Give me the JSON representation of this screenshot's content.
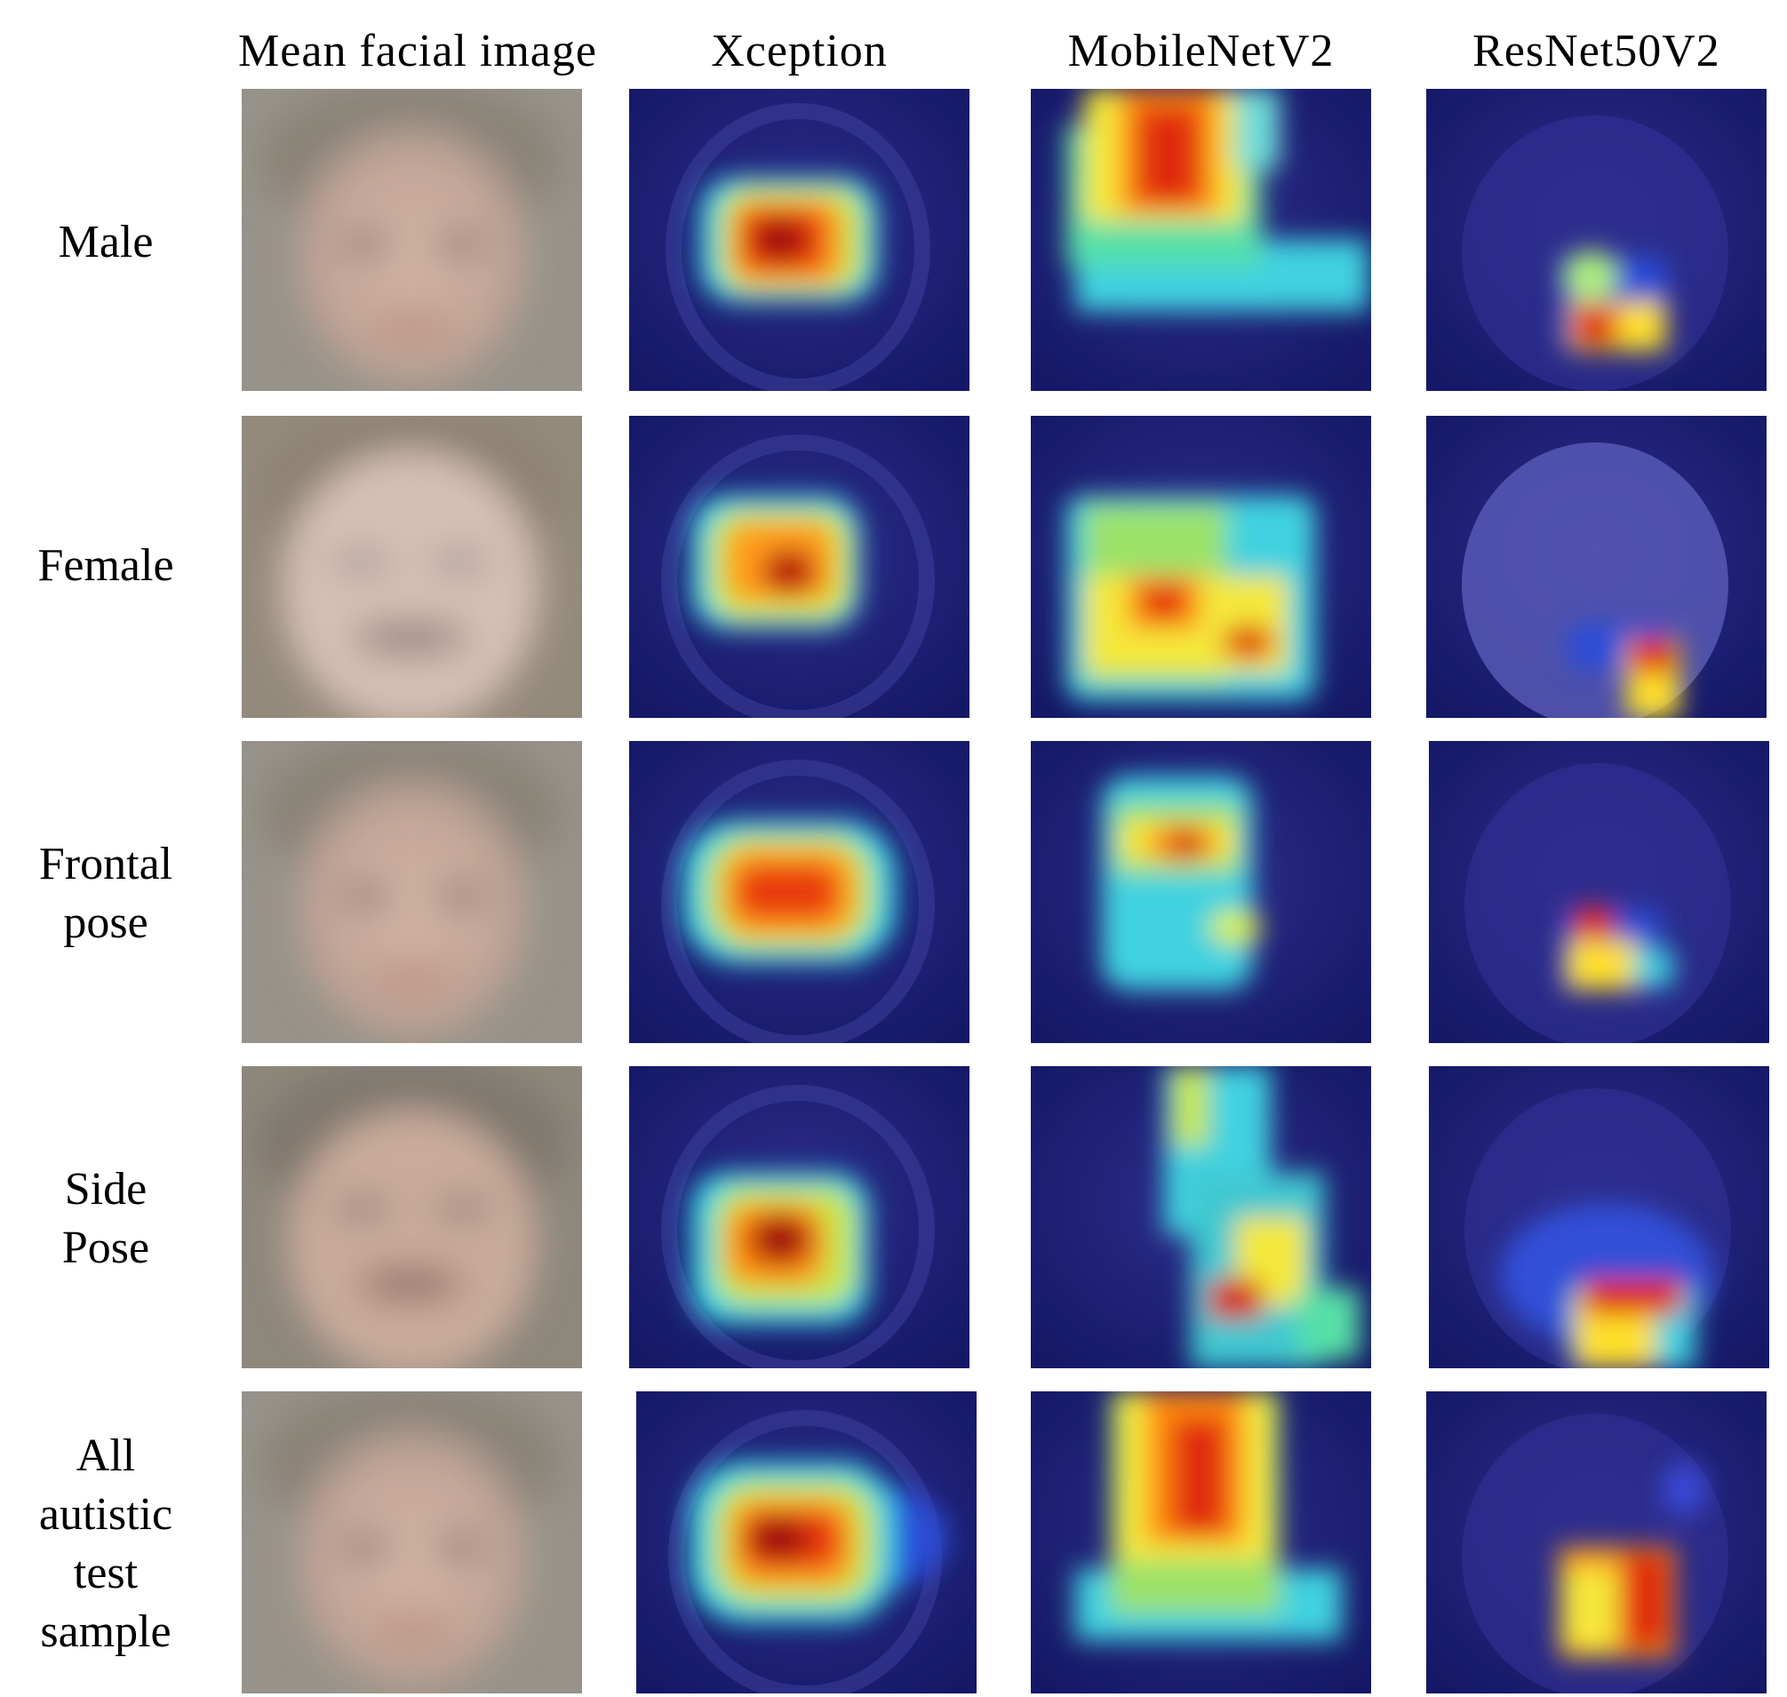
{
  "figure": {
    "column_headers": [
      "Mean facial image",
      "Xception",
      "MobileNetV2",
      "ResNet50V2"
    ],
    "rows": [
      {
        "label_lines": [
          "Male"
        ]
      },
      {
        "label_lines": [
          "Female"
        ]
      },
      {
        "label_lines": [
          "Frontal",
          "pose"
        ]
      },
      {
        "label_lines": [
          "Side",
          "Pose"
        ]
      },
      {
        "label_lines": [
          "All",
          "autistic",
          "test",
          "sample"
        ]
      }
    ],
    "colors": {
      "heatmap_background": "#1c1f7a",
      "face_skin": "#c9ab9a",
      "hair": "#8a8378"
    }
  }
}
